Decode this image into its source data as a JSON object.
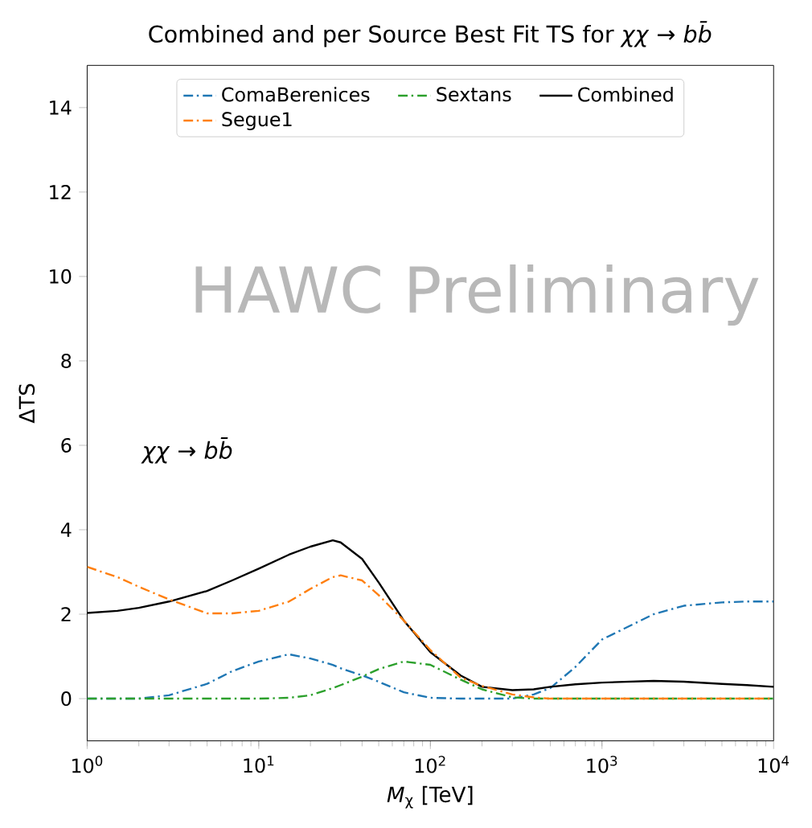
{
  "chart_data": {
    "type": "line",
    "title": "Combined and per Source Best Fit TS for *χχ* → *bb̄*",
    "xlabel": "*M*$_{χ}$ [TeV]",
    "ylabel": "ΔTS",
    "x": [
      1,
      1.5,
      2,
      3,
      5,
      7,
      10,
      15,
      20,
      27,
      30,
      40,
      50,
      70,
      100,
      150,
      200,
      300,
      400,
      500,
      700,
      1000,
      2000,
      3000,
      5000,
      7000,
      10000
    ],
    "series": [
      {
        "name": "ComaBerenices",
        "color": "#1f77b4",
        "line_style": "dashdot",
        "values": [
          0,
          0,
          0,
          0.08,
          0.35,
          0.65,
          0.88,
          1.05,
          0.95,
          0.8,
          0.72,
          0.55,
          0.4,
          0.15,
          0.02,
          0,
          0,
          0,
          0.1,
          0.25,
          0.75,
          1.4,
          2.0,
          2.2,
          2.28,
          2.3,
          2.3
        ]
      },
      {
        "name": "Sextans",
        "color": "#2ca02c",
        "line_style": "dashdot",
        "values": [
          0,
          0,
          0,
          0,
          0,
          0,
          0,
          0.02,
          0.08,
          0.25,
          0.32,
          0.52,
          0.7,
          0.88,
          0.8,
          0.45,
          0.22,
          0.03,
          0,
          0,
          0,
          0,
          0,
          0,
          0,
          0,
          0
        ]
      },
      {
        "name": "Combined",
        "color": "#000000",
        "line_style": "solid",
        "values": [
          2.03,
          2.08,
          2.15,
          2.3,
          2.55,
          2.8,
          3.08,
          3.41,
          3.6,
          3.75,
          3.7,
          3.31,
          2.75,
          1.85,
          1.1,
          0.55,
          0.28,
          0.2,
          0.22,
          0.28,
          0.34,
          0.38,
          0.42,
          0.4,
          0.35,
          0.32,
          0.28
        ]
      },
      {
        "name": "Segue1",
        "color": "#ff7f0e",
        "line_style": "dashdot",
        "values": [
          3.12,
          2.88,
          2.65,
          2.35,
          2.02,
          2.02,
          2.08,
          2.3,
          2.6,
          2.88,
          2.92,
          2.8,
          2.45,
          1.85,
          1.15,
          0.5,
          0.3,
          0.1,
          0.03,
          0,
          0,
          0,
          0,
          0,
          0,
          0,
          0
        ]
      }
    ],
    "log": "x",
    "xlim": [
      1,
      10000
    ],
    "xticks": [
      {
        "value": 1,
        "label": "10$^{0}$"
      },
      {
        "value": 10,
        "label": "10$^{1}$"
      },
      {
        "value": 100,
        "label": "10$^{2}$"
      },
      {
        "value": 1000,
        "label": "10$^{3}$"
      },
      {
        "value": 10000,
        "label": "10$^{4}$"
      }
    ],
    "ylim": [
      -1,
      15
    ],
    "yticks": [
      0,
      2,
      4,
      6,
      8,
      10,
      12,
      14
    ],
    "legend": "top",
    "grid": false,
    "annotations": [
      "HAWC Preliminary",
      "*χχ* → *bb̄*"
    ]
  }
}
